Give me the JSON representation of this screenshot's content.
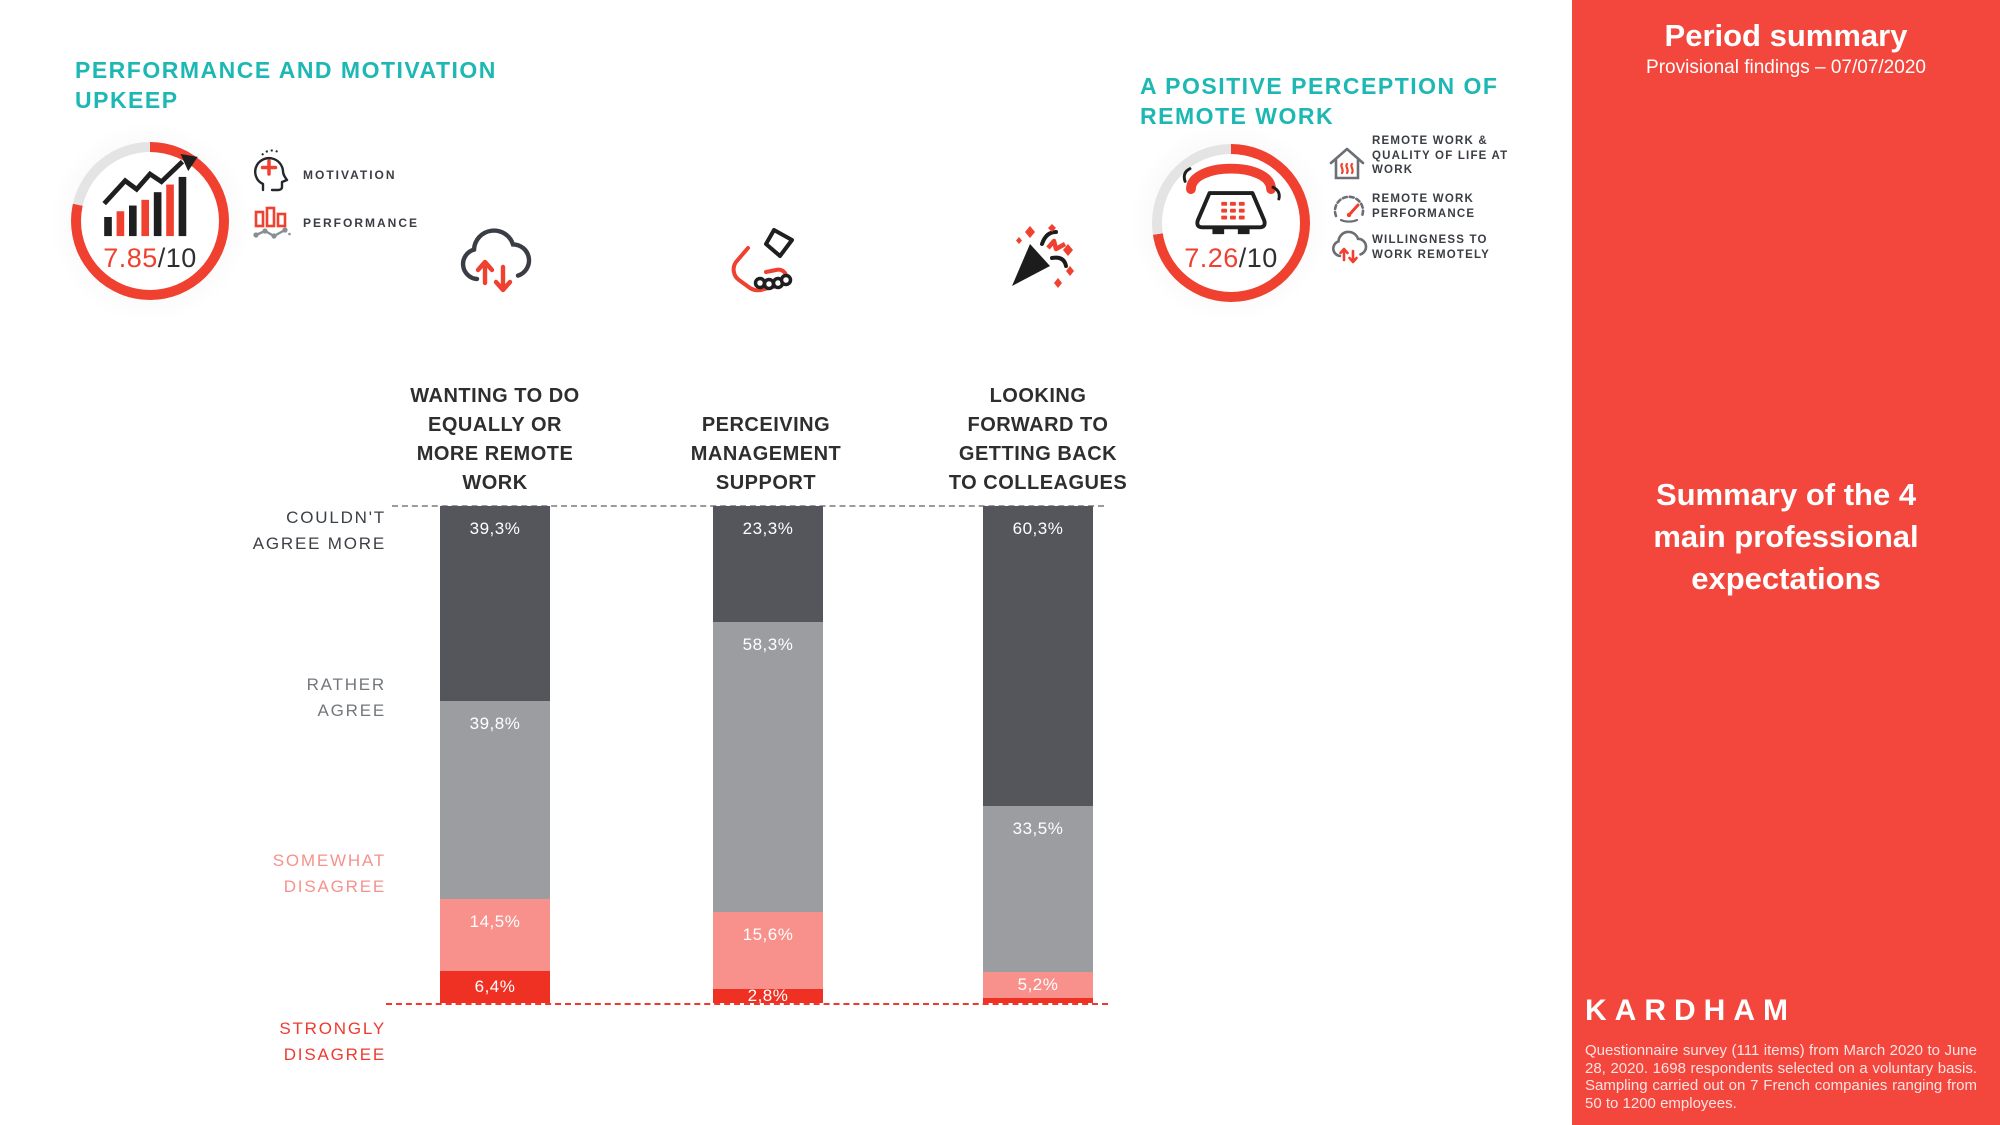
{
  "colors": {
    "teal": "#1eb8b4",
    "red": "#f0402f",
    "sidebar_red": "#f3463c",
    "ring_rest": "#e4e4e4"
  },
  "left_panel": {
    "title_lines": [
      "PERFORMANCE AND MOTIVATION",
      "UPKEEP"
    ],
    "score": {
      "value": "7.85",
      "suffix": "/10"
    },
    "legend": [
      {
        "icon": "motivation-head-icon",
        "label": "MOTIVATION"
      },
      {
        "icon": "performance-bars-icon",
        "label": "PERFORMANCE"
      }
    ]
  },
  "right_panel": {
    "title_lines": [
      "A POSITIVE PERCEPTION OF",
      "REMOTE WORK"
    ],
    "score": {
      "value": "7.26",
      "suffix": "/10"
    },
    "legend": [
      {
        "icon": "home-quality-icon",
        "lines": [
          "REMOTE WORK &",
          "QUALITY OF LIFE AT",
          "WORK"
        ]
      },
      {
        "icon": "speedometer-icon",
        "lines": [
          "REMOTE WORK",
          "PERFORMANCE"
        ]
      },
      {
        "icon": "cloud-arrows-icon",
        "lines": [
          "WILLINGNESS TO",
          "WORK REMOTELY"
        ]
      }
    ]
  },
  "chart_data": {
    "type": "bar",
    "stacked": true,
    "unit": "%",
    "ylim": [
      0,
      100
    ],
    "gridlines": false,
    "topline_style": "dashed-gray",
    "baseline_style": "dashed-red",
    "categories": [
      "WANTING TO DO EQUALLY OR MORE REMOTE WORK",
      "PERCEIVING MANAGEMENT SUPPORT",
      "LOOKING FORWARD TO GETTING BACK TO COLLEAGUES"
    ],
    "category_lines": [
      [
        "WANTING TO DO",
        "EQUALLY OR",
        "MORE REMOTE",
        "WORK"
      ],
      [
        "PERCEIVING",
        "MANAGEMENT",
        "SUPPORT"
      ],
      [
        "LOOKING",
        "FORWARD TO",
        "GETTING BACK",
        "TO COLLEAGUES"
      ]
    ],
    "series": [
      {
        "name": "COULDN'T AGREE MORE",
        "color": "#54565c",
        "label_color": "#3c4046",
        "values": [
          39.3,
          23.3,
          60.3
        ],
        "display_labels": [
          "39,3%",
          "23,3%",
          "60,3%"
        ]
      },
      {
        "name": "RATHER AGREE",
        "color": "#9b9da1",
        "label_color": "#73777c",
        "values": [
          39.8,
          58.3,
          33.5
        ],
        "display_labels": [
          "39,8%",
          "58,3%",
          "33,5%"
        ]
      },
      {
        "name": "SOMEWHAT DISAGREE",
        "color": "#f8918b",
        "label_color": "#f5928c",
        "values": [
          14.5,
          15.6,
          5.2
        ],
        "display_labels": [
          "14,5%",
          "15,6%",
          "5,2%"
        ]
      },
      {
        "name": "STRONGLY DISAGREE",
        "color": "#ef3124",
        "label_color": "#ee3a2f",
        "values": [
          6.4,
          2.8,
          1.0
        ],
        "display_labels": [
          "6,4%",
          "2,8%",
          ""
        ]
      }
    ],
    "row_label_lines": [
      [
        "COULDN'T",
        "AGREE MORE"
      ],
      [
        "RATHER",
        "AGREE"
      ],
      [
        "SOMEWHAT",
        "DISAGREE"
      ],
      [
        "STRONGLY",
        "DISAGREE"
      ]
    ]
  },
  "sidebar": {
    "title": "Period summary",
    "subtitle": "Provisional findings – 07/07/2020",
    "headline_lines": [
      "Summary of the 4",
      "main professional",
      "expectations"
    ],
    "brand": "KARDHAM",
    "footnote": "Questionnaire survey (111 items) from March 2020 to June 28, 2020. 1698 respondents selected on a voluntary basis. Sampling carried out on 7 French companies ranging from 50 to 1200 employees."
  }
}
